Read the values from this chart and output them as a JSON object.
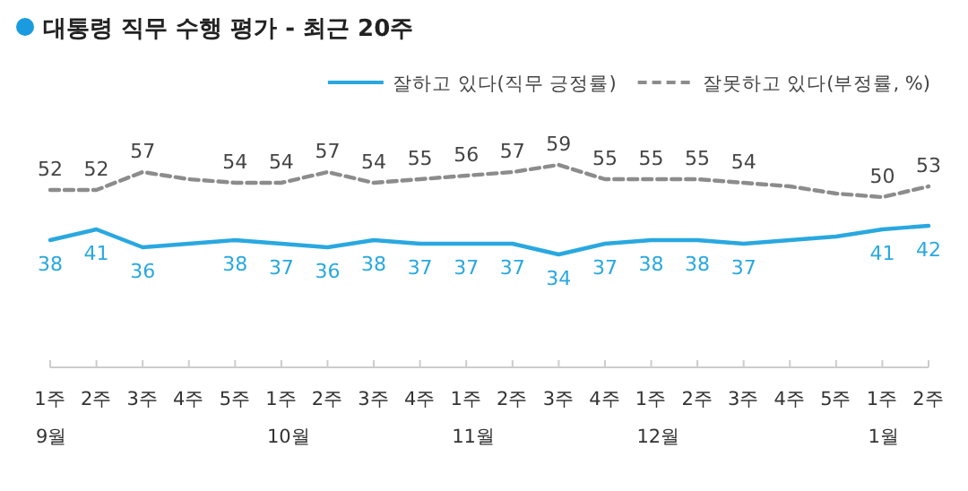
{
  "chart_data": {
    "type": "line",
    "title": "대통령 직무 수행 평가 - 최근 20주",
    "categories": [
      "1주\n9월",
      "2주",
      "3주",
      "4주",
      "5주",
      "1주\n10월",
      "2주",
      "3주",
      "4주",
      "1주\n11월",
      "2주",
      "3주",
      "4주",
      "1주\n12월",
      "2주",
      "3주",
      "4주",
      "5주",
      "1주\n1월",
      "2주"
    ],
    "series": [
      {
        "name": "잘하고 있다(직무 긍정률)",
        "color": "#29a8e0",
        "line_style": "solid",
        "values": [
          38,
          41,
          36,
          37,
          38,
          37,
          36,
          38,
          37,
          37,
          37,
          34,
          37,
          38,
          38,
          37,
          38,
          39,
          41,
          42
        ],
        "value_labels": [
          "38",
          "41",
          "36",
          null,
          "38",
          "37",
          "36",
          "38",
          "37",
          "37",
          "37",
          "34",
          "37",
          "38",
          "38",
          "37",
          null,
          null,
          "41",
          "42"
        ]
      },
      {
        "name": "잘못하고 있다(부정률, %)",
        "color": "#8c8c8c",
        "line_style": "dashed",
        "values": [
          52,
          52,
          57,
          55,
          54,
          54,
          57,
          54,
          55,
          56,
          57,
          59,
          55,
          55,
          55,
          54,
          53,
          51,
          50,
          53
        ],
        "value_labels": [
          "52",
          "52",
          "57",
          null,
          "54",
          "54",
          "57",
          "54",
          "55",
          "56",
          "57",
          "59",
          "55",
          "55",
          "55",
          "54",
          null,
          null,
          "50",
          "53"
        ]
      }
    ],
    "legend": "top right",
    "marker": "none"
  }
}
